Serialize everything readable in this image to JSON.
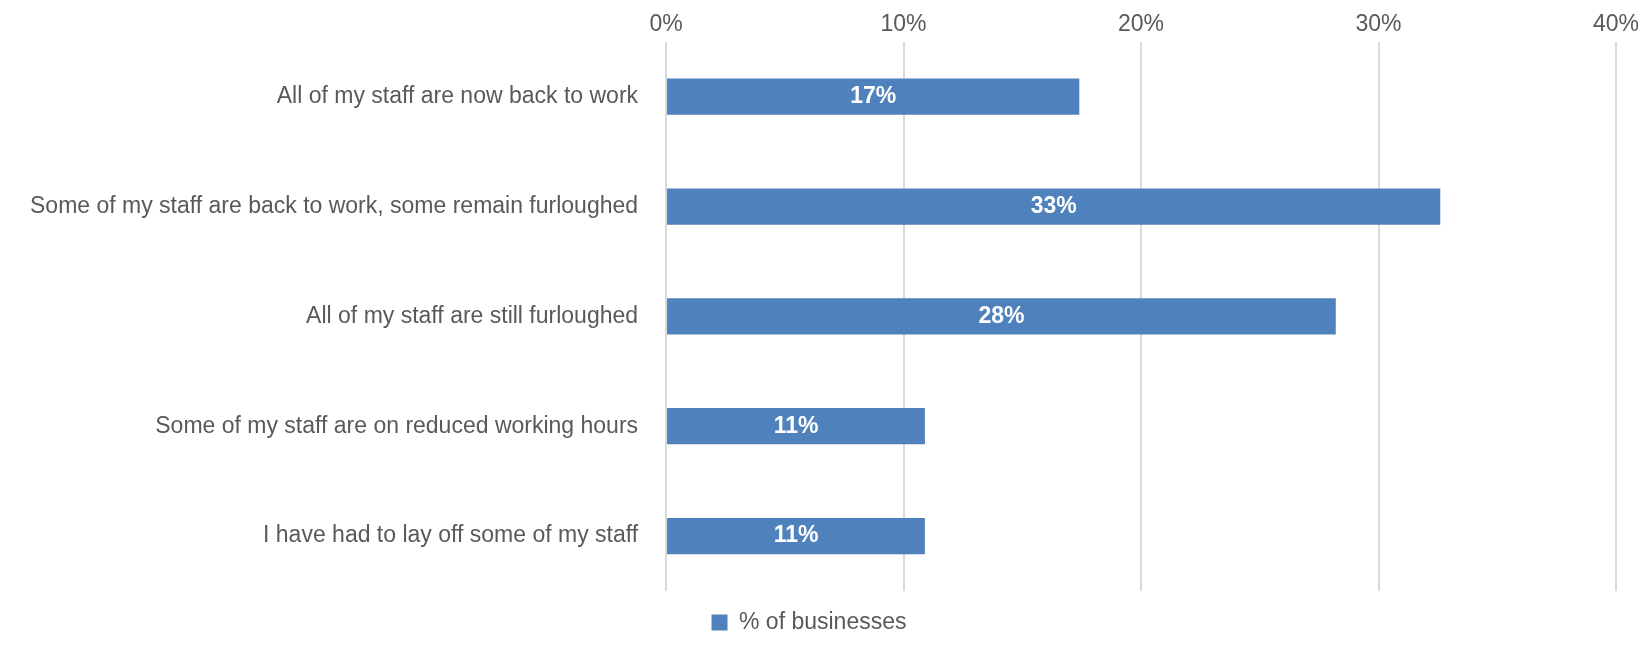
{
  "chart_data": {
    "type": "bar",
    "orientation": "horizontal",
    "categories": [
      "All of my staff are now back to work",
      "Some of my staff are back to work, some remain furloughed",
      "All of my staff are still furloughed",
      "Some of my staff are on reduced working hours",
      "I have had to lay off some of my staff"
    ],
    "series": [
      {
        "name": "% of businesses",
        "color": "#4f81bd",
        "values": [
          17.4,
          32.6,
          28.2,
          10.9,
          10.9
        ],
        "value_labels": [
          "17%",
          "33%",
          "28%",
          "11%",
          "11%"
        ]
      }
    ],
    "xlim": [
      0,
      40
    ],
    "xticks": [
      {
        "value": 0,
        "label": "0%"
      },
      {
        "value": 10,
        "label": "10%"
      },
      {
        "value": 20,
        "label": "20%"
      },
      {
        "value": 30,
        "label": "30%"
      },
      {
        "value": 40,
        "label": "40%"
      }
    ],
    "grid": "x",
    "legend": "bottom"
  }
}
